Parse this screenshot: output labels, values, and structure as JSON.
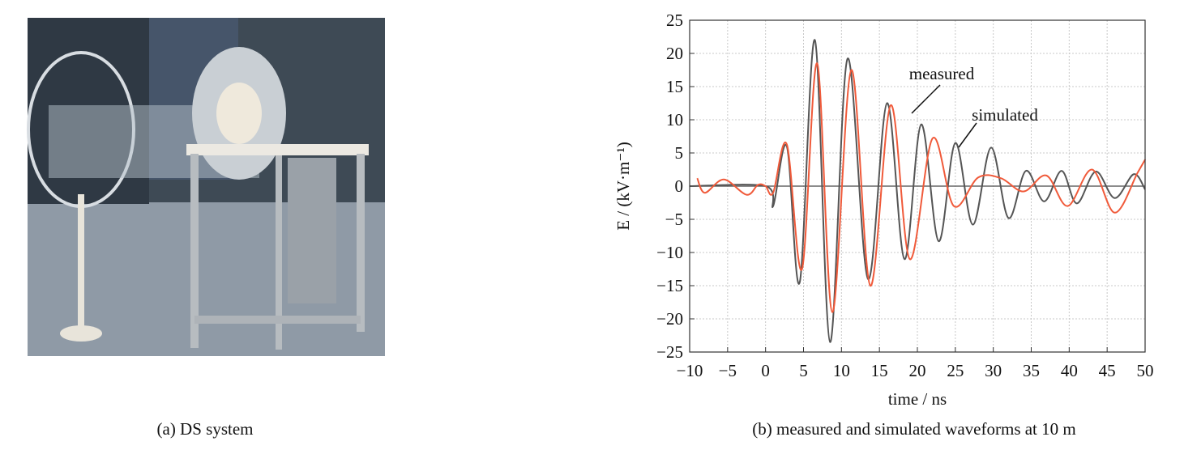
{
  "photo": {
    "caption": "(a) DS system"
  },
  "chart_data": {
    "type": "line",
    "title": "(b) measured and simulated waveforms at 10 m",
    "x_label": "time / ns",
    "y_label": "E / (kV·m⁻¹)",
    "xlim": [
      -10,
      50
    ],
    "ylim": [
      -25,
      25
    ],
    "xticks": [
      {
        "value": -10,
        "label": "−10"
      },
      {
        "value": -5,
        "label": "−5"
      },
      0,
      5,
      10,
      15,
      20,
      25,
      30,
      35,
      40,
      45,
      50
    ],
    "yticks": [
      {
        "value": -25,
        "label": "−25"
      },
      {
        "value": -20,
        "label": "−20"
      },
      {
        "value": -15,
        "label": "−15"
      },
      {
        "value": -10,
        "label": "−10"
      },
      {
        "value": -5,
        "label": "−5"
      },
      0,
      5,
      10,
      15,
      20,
      25
    ],
    "grid": true,
    "annotations": [
      "measured",
      "simulated"
    ],
    "series": [
      {
        "name": "measured",
        "color": "#555555",
        "x": [
          -10,
          0,
          1,
          2.8,
          4.5,
          6.5,
          8.5,
          10.8,
          13.5,
          16,
          18.3,
          20.5,
          22.8,
          25,
          27.3,
          29.7,
          32,
          34.3,
          36.7,
          39,
          41,
          43.5,
          46,
          48.5,
          50
        ],
        "values": [
          0,
          0,
          -3,
          6,
          -14.5,
          22,
          -23.5,
          19.2,
          -14,
          12.5,
          -11,
          9.3,
          -8.3,
          6.5,
          -5.8,
          5.8,
          -4.8,
          2.3,
          -2.3,
          2.3,
          -2.6,
          2.2,
          -1.8,
          1.8,
          -0.5
        ]
      },
      {
        "name": "simulated",
        "color": "#f05a3a",
        "x": [
          -9,
          -8,
          -5.5,
          -2.5,
          -1,
          0,
          1,
          2.8,
          4.8,
          6.8,
          8.8,
          11.3,
          13.8,
          16.5,
          19,
          22,
          24.8,
          28,
          31,
          34,
          37,
          39.8,
          43,
          46,
          49,
          50
        ],
        "values": [
          1.2,
          -1,
          1,
          -1.3,
          0.2,
          0,
          -1,
          6.3,
          -12.5,
          18.5,
          -19,
          17.5,
          -15,
          12.2,
          -11,
          7.2,
          -3,
          1.3,
          1.2,
          -0.8,
          1.6,
          -3,
          2.5,
          -4,
          2,
          4
        ]
      }
    ]
  }
}
